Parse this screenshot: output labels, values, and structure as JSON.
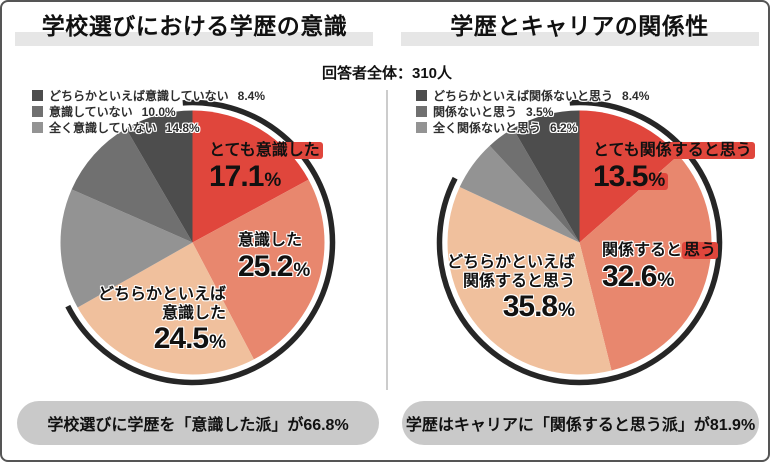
{
  "respondents": "回答者全体：310人",
  "percent_sign": "%",
  "accent": "#e0463c",
  "chart_data": [
    {
      "type": "pie",
      "title": "学校選びにおける学歴の意識",
      "slices_clockwise_from_top": [
        {
          "label": "とても意識した",
          "value": 17.1,
          "color": "#e0463c"
        },
        {
          "label": "意識した",
          "value": 25.2,
          "color": "#e8876e"
        },
        {
          "label": "どちらかといえば意識した",
          "value": 24.5,
          "color": "#f0c09d"
        },
        {
          "label": "全く意識していない",
          "value": 14.8,
          "color": "#939393"
        },
        {
          "label": "意識していない",
          "value": 10.0,
          "color": "#707070"
        },
        {
          "label": "どちらかといえば意識していない",
          "value": 8.4,
          "color": "#4d4d4d"
        }
      ],
      "legend": [
        {
          "label": "どちらかといえば意識していない",
          "pct": "8.4%",
          "color": "#4d4d4d"
        },
        {
          "label": "意識していない",
          "pct": "10.0%",
          "color": "#707070"
        },
        {
          "label": "全く意識していない",
          "pct": "14.8%",
          "color": "#939393"
        }
      ],
      "callouts": {
        "c1": {
          "text": "とても意識した",
          "num": "17.1"
        },
        "c2": {
          "text": "意識した",
          "num": "25.2"
        },
        "c3": {
          "lines": [
            "どちらかといえば",
            "意識した"
          ],
          "num": "24.5"
        }
      },
      "highlight_arc": {
        "covers_pct": 66.8,
        "color": "#262626"
      },
      "summary": "学校選びに学歴を「意識した派」が66.8%"
    },
    {
      "type": "pie",
      "title": "学歴とキャリアの関係性",
      "slices_clockwise_from_top": [
        {
          "label": "とても関係すると思う",
          "value": 13.5,
          "color": "#e0463c"
        },
        {
          "label": "関係すると思う",
          "value": 32.6,
          "color": "#e8876e"
        },
        {
          "label": "どちらかといえば関係すると思う",
          "value": 35.8,
          "color": "#f0c09d"
        },
        {
          "label": "全く関係ないと思う",
          "value": 6.2,
          "color": "#939393"
        },
        {
          "label": "関係ないと思う",
          "value": 3.5,
          "color": "#707070"
        },
        {
          "label": "どちらかといえば関係ないと思う",
          "value": 8.4,
          "color": "#4d4d4d"
        }
      ],
      "legend": [
        {
          "label": "どちらかといえば関係ないと思う",
          "pct": "8.4%",
          "color": "#4d4d4d"
        },
        {
          "label": "関係ないと思う",
          "pct": "3.5%",
          "color": "#707070"
        },
        {
          "label": "全く関係ないと思う",
          "pct": "6.2%",
          "color": "#939393"
        }
      ],
      "callouts": {
        "c1": {
          "text": "とても関係すると思う",
          "num": "13.5"
        },
        "c2": {
          "head": "関係すると",
          "tail": "思う",
          "num": "32.6"
        },
        "c3": {
          "lines": [
            "どちらかといえば",
            "関係すると思う"
          ],
          "num": "35.8"
        }
      },
      "highlight_arc": {
        "covers_pct": 81.9,
        "color": "#262626"
      },
      "summary": "学歴はキャリアに「関係すると思う派」が81.9%"
    }
  ]
}
